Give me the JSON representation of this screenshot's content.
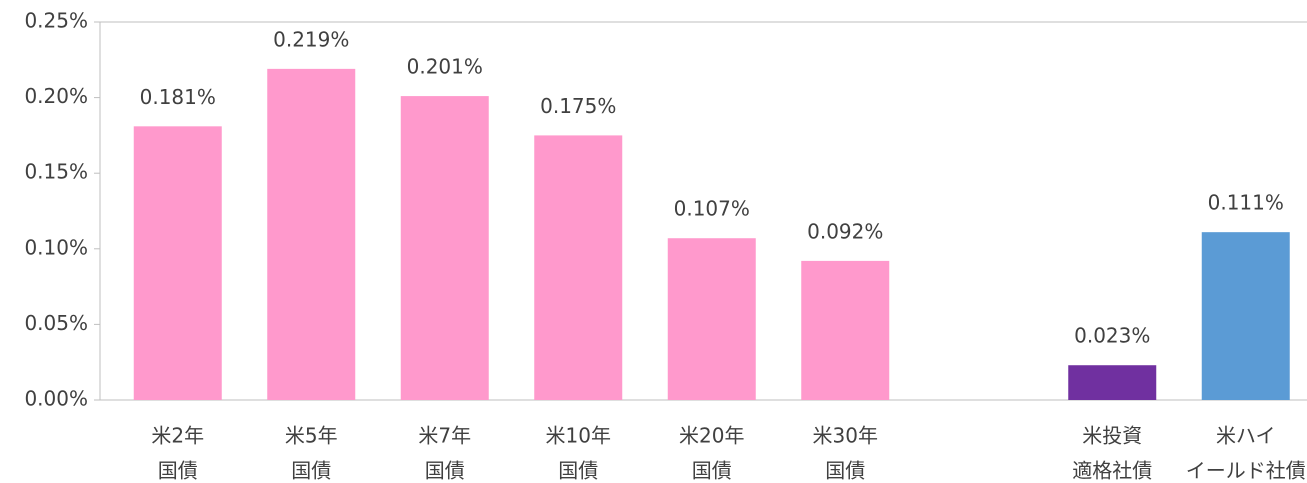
{
  "chart_data": {
    "type": "bar",
    "categories": [
      [
        "米2年",
        "国債"
      ],
      [
        "米5年",
        "国債"
      ],
      [
        "米7年",
        "国債"
      ],
      [
        "米10年",
        "国債"
      ],
      [
        "米20年",
        "国債"
      ],
      [
        "米30年",
        "国債"
      ],
      null,
      [
        "米投資",
        "適格社債"
      ],
      [
        "米ハイ",
        "イールド社債"
      ]
    ],
    "values": [
      0.181,
      0.219,
      0.201,
      0.175,
      0.107,
      0.092,
      null,
      0.023,
      0.111
    ],
    "value_labels": [
      "0.181%",
      "0.219%",
      "0.201%",
      "0.175%",
      "0.107%",
      "0.092%",
      null,
      "0.023%",
      "0.111%"
    ],
    "colors": [
      "#ff99cc",
      "#ff99cc",
      "#ff99cc",
      "#ff99cc",
      "#ff99cc",
      "#ff99cc",
      null,
      "#7030a0",
      "#5b9bd5"
    ],
    "ylim": [
      0,
      0.25
    ],
    "yticks": [
      {
        "value": 0,
        "label": "0.00%"
      },
      {
        "value": 0.05,
        "label": "0.05%"
      },
      {
        "value": 0.1,
        "label": "0.10%"
      },
      {
        "value": 0.15,
        "label": "0.15%"
      },
      {
        "value": 0.2,
        "label": "0.20%"
      },
      {
        "value": 0.25,
        "label": "0.25%"
      }
    ],
    "grid": false
  }
}
